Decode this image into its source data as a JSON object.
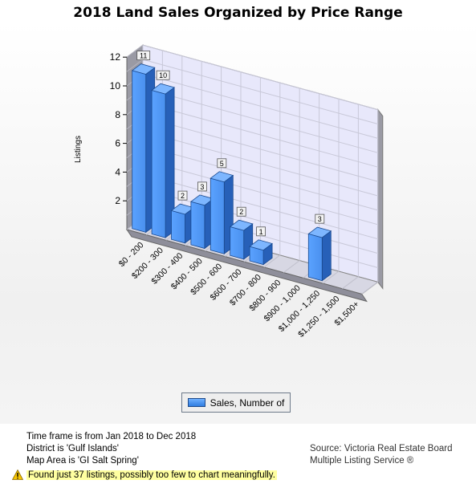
{
  "chart_data": {
    "type": "bar",
    "title": "2018 Land Sales Organized by Price Range",
    "ylabel": "Listings",
    "xlabel": "",
    "ylim": [
      0,
      12
    ],
    "yticks": [
      2,
      4,
      6,
      8,
      10,
      12
    ],
    "grid": true,
    "legend_position": "bottom",
    "categories": [
      "$0 - 200",
      "$200 - 300",
      "$300 - 400",
      "$400 - 500",
      "$500 - 600",
      "$600 - 700",
      "$700 - 800",
      "$800 - 900",
      "$900 - 1,000",
      "$1,000 - 1,250",
      "$1,250 - 1,500",
      "$1,500+"
    ],
    "series": [
      {
        "name": "Sales, Number of",
        "values": [
          11,
          10,
          2,
          3,
          5,
          2,
          1,
          0,
          0,
          3,
          0,
          0
        ]
      }
    ],
    "colors": {
      "bar_front": "#4a90ee",
      "bar_side": "#2760b8",
      "bar_top": "#7db6ff",
      "back_wall": "#e8e8fb",
      "grid": "#c8c8d8"
    }
  },
  "info": {
    "timeframe": "Time frame is from Jan 2018 to Dec 2018",
    "district": "District is 'Gulf Islands'",
    "area": "Map Area is 'GI Salt Spring'"
  },
  "source": {
    "line1": "Source: Victoria Real Estate Board",
    "line2": "Multiple Listing Service ®"
  },
  "warning": {
    "icon": "warning-triangle-icon",
    "text": "Found just 37 listings, possibly too few to chart meaningfully."
  }
}
